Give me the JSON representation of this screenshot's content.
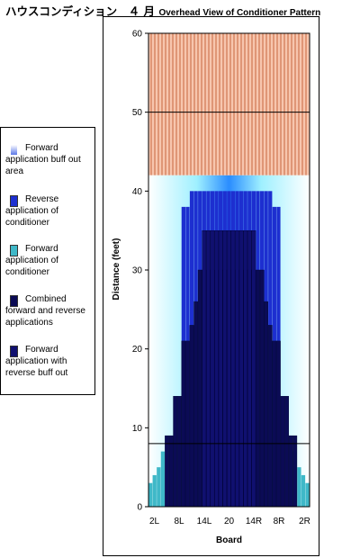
{
  "title": {
    "japanese": "ハウスコンディション　４ 月",
    "english": "Overhead View of Conditioner Pattern"
  },
  "legend": [
    {
      "label": "Forward application buff out area",
      "icon": "gradient-swatch",
      "color": "#aab6f0"
    },
    {
      "label": "Reverse application of conditioner",
      "icon": "solid-swatch",
      "color": "#1d2fd0"
    },
    {
      "label": "Forward application of conditioner",
      "icon": "solid-swatch",
      "color": "#3fb8c8"
    },
    {
      "label": "Combined forward and reverse applications",
      "icon": "solid-swatch",
      "color": "#0b0b55"
    },
    {
      "label": "Forward application with reverse buff out",
      "icon": "solid-swatch",
      "color": "#101070"
    }
  ],
  "chart_data": {
    "type": "bar",
    "ylabel": "Distance (feet)",
    "xlabel": "Board",
    "ylim": [
      0,
      60
    ],
    "yticks": [
      0,
      10,
      20,
      30,
      40,
      50,
      60
    ],
    "xticks": [
      "2L",
      "8L",
      "14L",
      "20",
      "14R",
      "8R",
      "2R"
    ],
    "boards": 39,
    "oiled_distance_feet": 42,
    "gridlines_feet": [
      8,
      50
    ],
    "series": [
      {
        "name": "Forward application buff out area",
        "values": [
          42,
          42,
          42,
          42,
          42,
          42,
          42,
          42,
          42,
          42,
          42,
          42,
          42,
          42,
          42,
          42,
          42,
          42,
          42,
          42,
          42,
          42,
          42,
          42,
          42,
          42,
          42,
          42,
          42,
          42,
          42,
          42,
          42,
          42,
          42,
          42,
          42,
          42,
          42
        ]
      },
      {
        "name": "Reverse application of conditioner",
        "values": [
          0,
          0,
          0,
          0,
          0,
          0,
          0,
          0,
          38,
          38,
          40,
          40,
          40,
          40,
          40,
          40,
          40,
          40,
          40,
          40,
          40,
          40,
          40,
          40,
          40,
          40,
          40,
          40,
          40,
          40,
          38,
          38,
          0,
          0,
          0,
          0,
          0,
          0,
          0
        ]
      },
      {
        "name": "Forward application of conditioner",
        "values": [
          3,
          4,
          5,
          7,
          9,
          9,
          14,
          14,
          21,
          21,
          23,
          26,
          30,
          30,
          30,
          30,
          30,
          30,
          30,
          30,
          30,
          30,
          30,
          30,
          30,
          30,
          30,
          30,
          26,
          23,
          21,
          21,
          14,
          14,
          9,
          7,
          5,
          4,
          3
        ]
      },
      {
        "name": "Combined forward and reverse applications",
        "values": [
          0,
          0,
          0,
          0,
          9,
          9,
          14,
          14,
          21,
          21,
          23,
          26,
          30,
          30,
          30,
          30,
          30,
          30,
          30,
          30,
          30,
          30,
          30,
          30,
          30,
          30,
          30,
          30,
          26,
          23,
          21,
          21,
          14,
          14,
          9,
          9,
          0,
          0,
          0
        ]
      },
      {
        "name": "Forward application with reverse buff out",
        "values": [
          0,
          0,
          0,
          0,
          0,
          0,
          0,
          0,
          0,
          0,
          0,
          0,
          0,
          35,
          35,
          35,
          35,
          35,
          35,
          35,
          35,
          35,
          35,
          35,
          35,
          35,
          0,
          0,
          0,
          0,
          0,
          0,
          0,
          0,
          0,
          0,
          0,
          0,
          0
        ]
      }
    ],
    "colors": {
      "plot_border": "#000000",
      "hatch_area": "#f7c6ae",
      "hatch_line": "#c25a32",
      "buff_outer": "#ffffff",
      "buff_inner": "#1f6fff",
      "reverse": "#1d2fd0",
      "forward": "#3fb8c8",
      "combined": "#0b0b55",
      "reverse_buff": "#101070"
    }
  }
}
